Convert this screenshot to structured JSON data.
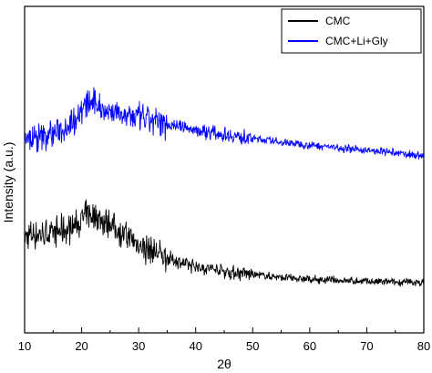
{
  "chart_data": {
    "type": "line",
    "xlabel": "2θ",
    "ylabel": "Intensity (a.u.)",
    "xlim": [
      10,
      80
    ],
    "xticks": [
      "10",
      "20",
      "30",
      "40",
      "50",
      "60",
      "70",
      "80"
    ],
    "yticks_shown": false,
    "legend_position": "top-right",
    "series": [
      {
        "name": "CMC",
        "color": "#000000",
        "x": [
          10,
          12,
          14,
          16,
          18,
          20,
          21,
          22,
          23,
          24,
          25,
          26,
          28,
          30,
          32,
          34,
          36,
          38,
          40,
          43,
          46,
          50,
          55,
          60,
          65,
          70,
          75,
          80
        ],
        "y": [
          0.17,
          0.18,
          0.18,
          0.19,
          0.2,
          0.23,
          0.25,
          0.25,
          0.24,
          0.23,
          0.22,
          0.2,
          0.17,
          0.14,
          0.12,
          0.1,
          0.085,
          0.07,
          0.06,
          0.05,
          0.04,
          0.03,
          0.02,
          0.012,
          0.008,
          0.004,
          0.002,
          0.0
        ]
      },
      {
        "name": "CMC+Li+Gly",
        "color": "#0000ff",
        "x": [
          10,
          12,
          14,
          16,
          18,
          20,
          21,
          22,
          23,
          24,
          26,
          28,
          30,
          32,
          34,
          36,
          38,
          40,
          43,
          46,
          50,
          55,
          60,
          65,
          70,
          75,
          80
        ],
        "y": [
          0.53,
          0.53,
          0.545,
          0.56,
          0.59,
          0.64,
          0.66,
          0.665,
          0.655,
          0.645,
          0.63,
          0.62,
          0.61,
          0.6,
          0.59,
          0.585,
          0.575,
          0.565,
          0.555,
          0.545,
          0.535,
          0.52,
          0.51,
          0.5,
          0.49,
          0.48,
          0.47
        ]
      }
    ]
  }
}
